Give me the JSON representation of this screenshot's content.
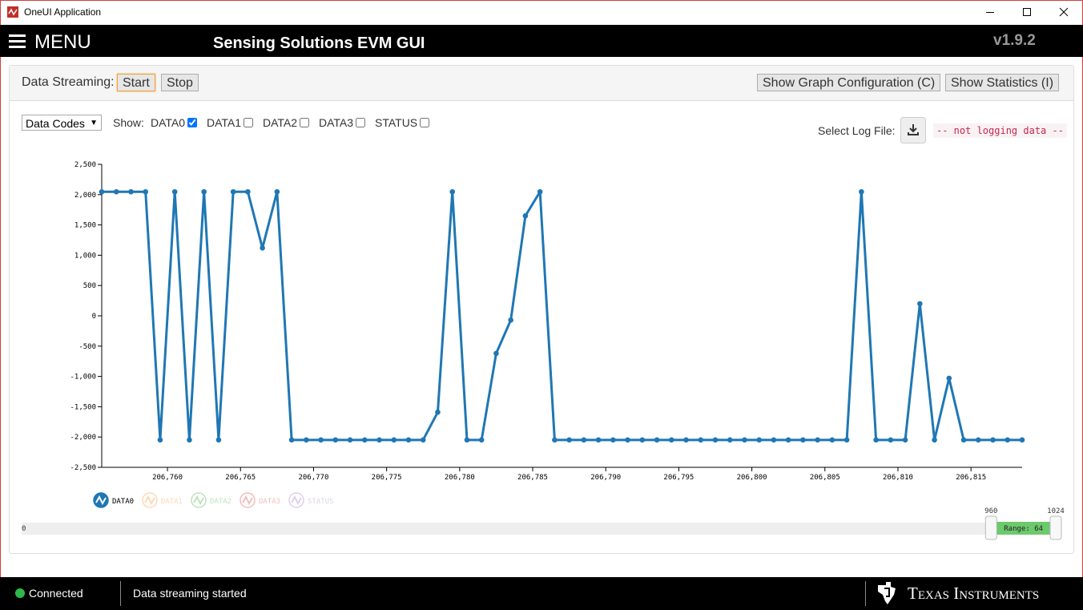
{
  "window": {
    "title": "OneUI Application"
  },
  "header": {
    "menu": "MENU",
    "title": "Sensing Solutions EVM GUI",
    "version": "v1.9.2"
  },
  "toolbar": {
    "label": "Data Streaming:",
    "start": "Start",
    "stop": "Stop",
    "graph_config": "Show Graph Configuration (C)",
    "statistics": "Show Statistics (I)"
  },
  "controls": {
    "select": "Data Codes",
    "show_label": "Show:",
    "channels": [
      {
        "label": "DATA0",
        "checked": true
      },
      {
        "label": "DATA1",
        "checked": false
      },
      {
        "label": "DATA2",
        "checked": false
      },
      {
        "label": "DATA3",
        "checked": false
      },
      {
        "label": "STATUS",
        "checked": false
      }
    ],
    "log_label": "Select Log File:",
    "log_status": "-- not logging data --"
  },
  "chart_data": {
    "type": "line",
    "x": [
      206755.5,
      206756.5,
      206757.5,
      206758.5,
      206759.5,
      206760.5,
      206761.5,
      206762.5,
      206763.5,
      206764.5,
      206765.5,
      206766.5,
      206767.5,
      206768.5,
      206769.5,
      206770.5,
      206771.5,
      206772.5,
      206773.5,
      206774.5,
      206775.5,
      206776.5,
      206777.5,
      206778.5,
      206779.5,
      206780.5,
      206781.5,
      206782.5,
      206783.5,
      206784.5,
      206785.5,
      206786.5,
      206787.5,
      206788.5,
      206789.5,
      206790.5,
      206791.5,
      206792.5,
      206793.5,
      206794.5,
      206795.5,
      206796.5,
      206797.5,
      206798.5,
      206799.5,
      206800.5,
      206801.5,
      206802.5,
      206803.5,
      206804.5,
      206805.5,
      206806.5,
      206807.5,
      206808.5,
      206809.5,
      206810.5,
      206811.5,
      206812.5,
      206813.5,
      206814.5,
      206815.5,
      206816.5,
      206817.5,
      206818.5
    ],
    "series": [
      {
        "name": "DATA0",
        "color": "#1f77b4",
        "values": [
          2047,
          2047,
          2047,
          2047,
          -2048,
          2047,
          -2048,
          2047,
          -2048,
          2047,
          2047,
          1120,
          2047,
          -2048,
          -2048,
          -2048,
          -2048,
          -2048,
          -2048,
          -2048,
          -2048,
          -2048,
          -2048,
          -1590,
          2047,
          -2048,
          -2048,
          -620,
          -70,
          1650,
          2047,
          -2048,
          -2048,
          -2048,
          -2048,
          -2048,
          -2048,
          -2048,
          -2048,
          -2048,
          -2048,
          -2048,
          -2048,
          -2048,
          -2048,
          -2048,
          -2048,
          -2048,
          -2048,
          -2048,
          -2048,
          -2048,
          2047,
          -2048,
          -2048,
          -2048,
          200,
          -2048,
          -1030,
          -2048,
          -2048,
          -2048,
          -2048,
          -2048
        ]
      }
    ],
    "legend": [
      {
        "name": "DATA0",
        "color": "#1f77b4",
        "active": true
      },
      {
        "name": "DATA1",
        "color": "#ff7f0e",
        "active": false
      },
      {
        "name": "DATA2",
        "color": "#2ca02c",
        "active": false
      },
      {
        "name": "DATA3",
        "color": "#d62728",
        "active": false
      },
      {
        "name": "STATUS",
        "color": "#9467bd",
        "active": false
      }
    ],
    "xlim": [
      206755.5,
      206818.5
    ],
    "xticks": [
      {
        "value": 206760,
        "label": "206,760"
      },
      {
        "value": 206765,
        "label": "206,765"
      },
      {
        "value": 206770,
        "label": "206,770"
      },
      {
        "value": 206775,
        "label": "206,775"
      },
      {
        "value": 206780,
        "label": "206,780"
      },
      {
        "value": 206785,
        "label": "206,785"
      },
      {
        "value": 206790,
        "label": "206,790"
      },
      {
        "value": 206795,
        "label": "206,795"
      },
      {
        "value": 206800,
        "label": "206,800"
      },
      {
        "value": 206805,
        "label": "206,805"
      },
      {
        "value": 206810,
        "label": "206,810"
      },
      {
        "value": 206815,
        "label": "206,815"
      }
    ],
    "ylim": [
      -2500,
      2500
    ],
    "yticks": [
      {
        "value": -2500,
        "label": "-2,500"
      },
      {
        "value": -2000,
        "label": "-2,000"
      },
      {
        "value": -1500,
        "label": "-1,500"
      },
      {
        "value": -1000,
        "label": "-1,000"
      },
      -500,
      0,
      500,
      {
        "value": 1000,
        "label": "1,000"
      },
      {
        "value": 1500,
        "label": "1,500"
      },
      {
        "value": 2000,
        "label": "2,000"
      },
      {
        "value": 2500,
        "label": "2,500"
      }
    ],
    "grid": false
  },
  "range": {
    "min": 0,
    "max": 1024,
    "start": 960,
    "end": 1024,
    "label": "Range: 64"
  },
  "status": {
    "connection": "Connected",
    "message": "Data streaming started",
    "brand": "Texas Instruments"
  }
}
